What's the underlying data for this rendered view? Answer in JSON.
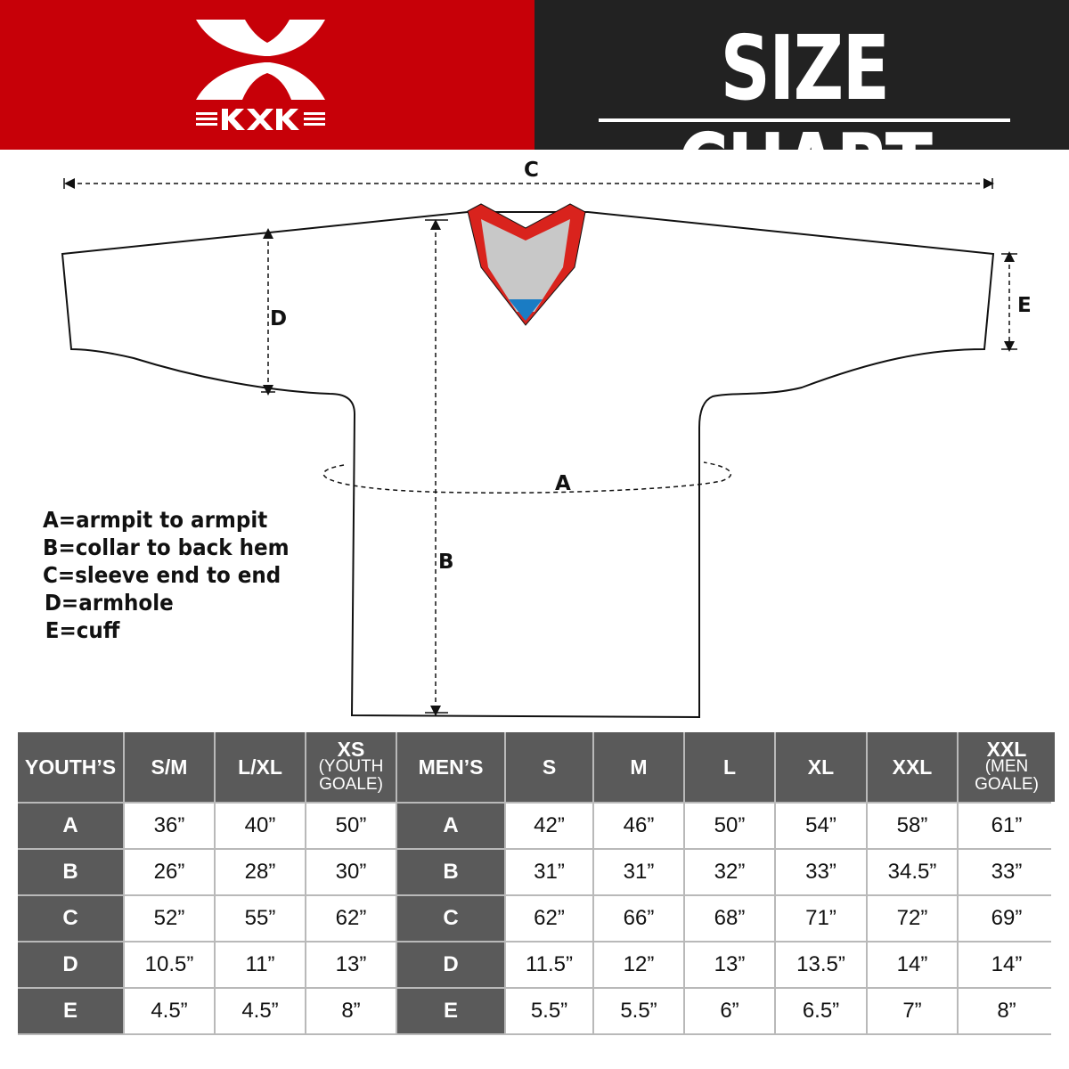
{
  "brand": {
    "logo_text": "KXK",
    "primary_color": "#c70008",
    "dark_color": "#222222"
  },
  "header": {
    "title": "SIZE CHART"
  },
  "diagram": {
    "labels": {
      "a": "A",
      "b": "B",
      "c": "C",
      "d": "D",
      "e": "E"
    },
    "collar_colors": {
      "trim": "#d9231d",
      "inner": "#c8c8c8",
      "tip": "#1a7cc4"
    }
  },
  "legend": [
    "A=armpit to armpit",
    "B=collar to back hem",
    "C=sleeve end to end",
    "D=armhole",
    "E=cuff"
  ],
  "table": {
    "youth_header": "YOUTH’S",
    "men_header": "MEN’S",
    "youth_sizes": [
      {
        "main": "S/M",
        "sub": ""
      },
      {
        "main": "L/XL",
        "sub": ""
      },
      {
        "main": "XS",
        "sub": "(YOUTH GOALE)"
      }
    ],
    "men_sizes": [
      {
        "main": "S",
        "sub": ""
      },
      {
        "main": "M",
        "sub": ""
      },
      {
        "main": "L",
        "sub": ""
      },
      {
        "main": "XL",
        "sub": ""
      },
      {
        "main": "XXL",
        "sub": ""
      },
      {
        "main": "XXL",
        "sub": "(MEN GOALE)"
      }
    ],
    "rows": [
      {
        "label": "A",
        "youth": [
          "36”",
          "40”",
          "50”"
        ],
        "men": [
          "42”",
          "46”",
          "50”",
          "54”",
          "58”",
          "61”"
        ]
      },
      {
        "label": "B",
        "youth": [
          "26”",
          "28”",
          "30”"
        ],
        "men": [
          "31”",
          "31”",
          "32”",
          "33”",
          "34.5”",
          "33”"
        ]
      },
      {
        "label": "C",
        "youth": [
          "52”",
          "55”",
          "62”"
        ],
        "men": [
          "62”",
          "66”",
          "68”",
          "71”",
          "72”",
          "69”"
        ]
      },
      {
        "label": "D",
        "youth": [
          "10.5”",
          "11”",
          "13”"
        ],
        "men": [
          "11.5”",
          "12”",
          "13”",
          "13.5”",
          "14”",
          "14”"
        ]
      },
      {
        "label": "E",
        "youth": [
          "4.5”",
          "4.5”",
          "8”"
        ],
        "men": [
          "5.5”",
          "5.5”",
          "6”",
          "6.5”",
          "7”",
          "8”"
        ]
      }
    ]
  }
}
